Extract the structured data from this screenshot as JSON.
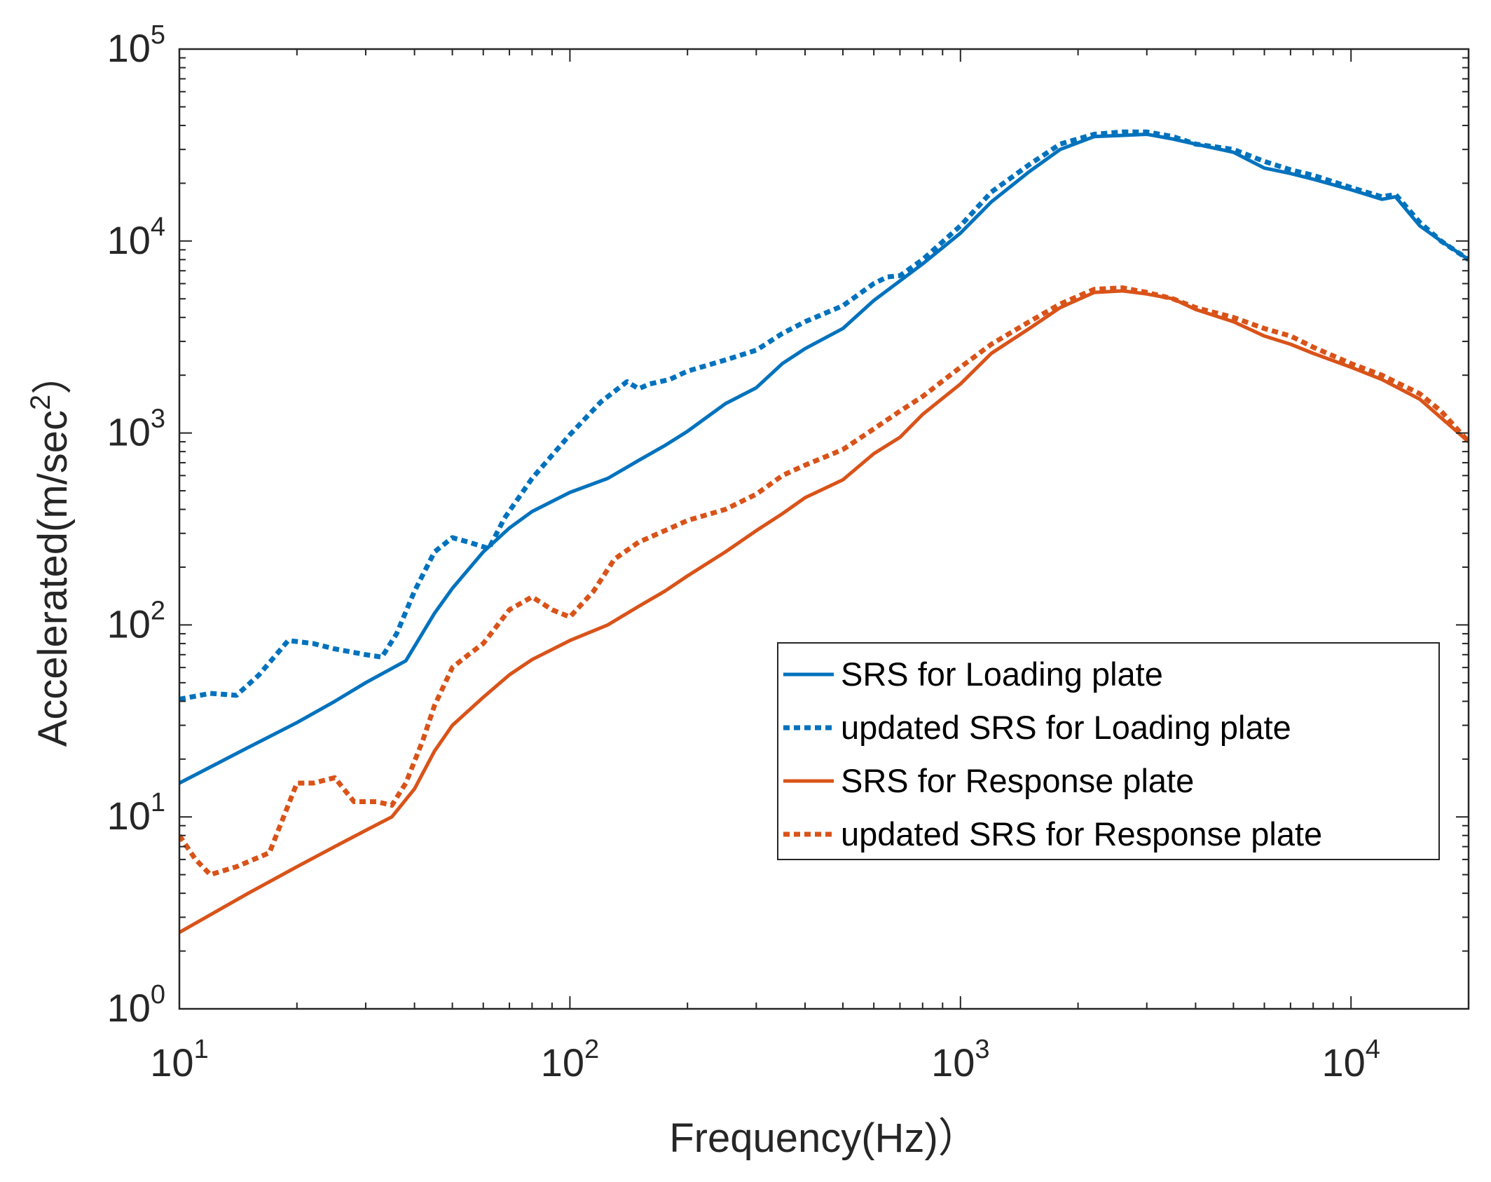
{
  "chart_data": {
    "type": "line",
    "xscale": "log",
    "yscale": "log",
    "xlim": [
      10,
      20000
    ],
    "ylim": [
      1,
      100000
    ],
    "xlabel": "Frequency(Hz)）",
    "ylabel_main": "Accelerated(m/sec",
    "ylabel_sup": "2",
    "ylabel_close": "）",
    "xticks": [
      {
        "value": 10,
        "base": "10",
        "exp": "1"
      },
      {
        "value": 100,
        "base": "10",
        "exp": "2"
      },
      {
        "value": 1000,
        "base": "10",
        "exp": "3"
      },
      {
        "value": 10000,
        "base": "10",
        "exp": "4"
      }
    ],
    "yticks": [
      {
        "value": 1,
        "base": "10",
        "exp": "0"
      },
      {
        "value": 10,
        "base": "10",
        "exp": "1"
      },
      {
        "value": 100,
        "base": "10",
        "exp": "2"
      },
      {
        "value": 1000,
        "base": "10",
        "exp": "3"
      },
      {
        "value": 10000,
        "base": "10",
        "exp": "4"
      },
      {
        "value": 100000,
        "base": "10",
        "exp": "5"
      }
    ],
    "legend_position": "right-middle",
    "series": [
      {
        "name": "SRS for Loading plate",
        "color": "#0072BD",
        "style": "solid",
        "x": [
          10,
          15,
          20,
          25,
          30,
          38,
          45,
          50,
          60,
          70,
          80,
          100,
          125,
          150,
          175,
          200,
          250,
          300,
          350,
          400,
          500,
          600,
          700,
          800,
          1000,
          1200,
          1500,
          1800,
          2200,
          2600,
          3000,
          3500,
          4000,
          5000,
          6000,
          7000,
          8000,
          10000,
          12000,
          13000,
          15000,
          17000,
          20000
        ],
        "y": [
          15,
          23,
          31,
          40,
          50,
          65,
          115,
          155,
          240,
          320,
          390,
          490,
          580,
          720,
          860,
          1020,
          1420,
          1720,
          2300,
          2750,
          3500,
          4900,
          6200,
          7600,
          11000,
          16000,
          23000,
          30000,
          35000,
          35500,
          36000,
          34000,
          32000,
          29000,
          24000,
          22500,
          21000,
          18500,
          16500,
          17000,
          12000,
          10000,
          8000
        ]
      },
      {
        "name": "updated SRS for Loading plate",
        "color": "#0072BD",
        "style": "dotted",
        "x": [
          10,
          12,
          14,
          16,
          19,
          22,
          25,
          30,
          33,
          36,
          40,
          45,
          50,
          55,
          62,
          68,
          80,
          100,
          120,
          140,
          150,
          160,
          180,
          200,
          250,
          300,
          350,
          400,
          500,
          600,
          650,
          700,
          800,
          1000,
          1200,
          1500,
          1800,
          2200,
          2600,
          3000,
          3500,
          4000,
          5000,
          6000,
          7000,
          8000,
          10000,
          12000,
          13000,
          15000,
          17000,
          20000
        ],
        "y": [
          41,
          44,
          43,
          55,
          83,
          80,
          75,
          70,
          68,
          90,
          150,
          240,
          285,
          270,
          250,
          360,
          580,
          980,
          1450,
          1850,
          1700,
          1800,
          1900,
          2100,
          2400,
          2700,
          3300,
          3800,
          4600,
          6000,
          6500,
          6600,
          8000,
          12000,
          18000,
          25000,
          32000,
          36000,
          37000,
          37000,
          35000,
          32000,
          30000,
          26000,
          23500,
          22000,
          19000,
          17000,
          17500,
          12500,
          10000,
          8000
        ]
      },
      {
        "name": "SRS for Response plate",
        "color": "#D95319",
        "style": "solid",
        "x": [
          10,
          15,
          20,
          25,
          30,
          35,
          40,
          45,
          50,
          60,
          70,
          80,
          100,
          125,
          150,
          175,
          200,
          250,
          300,
          350,
          400,
          500,
          600,
          700,
          800,
          1000,
          1200,
          1500,
          1800,
          2200,
          2600,
          3000,
          3500,
          4000,
          5000,
          6000,
          7000,
          8000,
          10000,
          12000,
          15000,
          17000,
          20000
        ],
        "y": [
          2.5,
          4,
          5.5,
          7,
          8.5,
          10,
          14,
          22,
          30,
          42,
          55,
          66,
          83,
          100,
          125,
          150,
          180,
          240,
          310,
          380,
          460,
          570,
          780,
          950,
          1250,
          1800,
          2600,
          3500,
          4500,
          5400,
          5500,
          5300,
          5000,
          4400,
          3800,
          3200,
          2900,
          2600,
          2200,
          1900,
          1500,
          1200,
          900
        ]
      },
      {
        "name": "updated SRS for Response plate",
        "color": "#D95319",
        "style": "dotted",
        "x": [
          10,
          11,
          12,
          14,
          17,
          20,
          22,
          25,
          28,
          32,
          35,
          38,
          42,
          45,
          50,
          55,
          60,
          70,
          80,
          90,
          100,
          115,
          130,
          150,
          175,
          200,
          250,
          300,
          350,
          400,
          500,
          600,
          700,
          800,
          1000,
          1200,
          1500,
          1800,
          2200,
          2600,
          3000,
          3500,
          4000,
          5000,
          6000,
          7000,
          8000,
          10000,
          12000,
          15000,
          17000,
          20000
        ],
        "y": [
          8,
          6,
          5,
          5.5,
          6.5,
          15,
          15,
          16,
          12,
          12,
          11.5,
          15,
          25,
          38,
          60,
          70,
          80,
          120,
          140,
          120,
          110,
          150,
          220,
          270,
          310,
          350,
          400,
          480,
          600,
          680,
          820,
          1050,
          1300,
          1550,
          2200,
          2900,
          3800,
          4700,
          5600,
          5700,
          5400,
          5000,
          4500,
          4000,
          3500,
          3200,
          2800,
          2300,
          2000,
          1600,
          1300,
          900
        ]
      }
    ]
  }
}
